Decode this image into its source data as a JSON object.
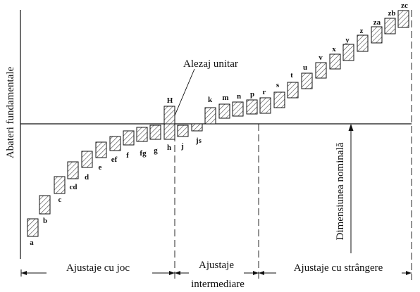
{
  "y_axis_label": "Abateri fundamentale",
  "zero_line_label": "Dimensiunea nominală",
  "hole_band": {
    "letter": "H",
    "callout": "Alezaj unitar"
  },
  "shaft_bands": [
    {
      "letter": "a"
    },
    {
      "letter": "b"
    },
    {
      "letter": "c"
    },
    {
      "letter": "cd"
    },
    {
      "letter": "d"
    },
    {
      "letter": "e"
    },
    {
      "letter": "ef"
    },
    {
      "letter": "f"
    },
    {
      "letter": "fg"
    },
    {
      "letter": "g"
    },
    {
      "letter": "h"
    },
    {
      "letter": "j"
    },
    {
      "letter": "js"
    },
    {
      "letter": "k"
    },
    {
      "letter": "m"
    },
    {
      "letter": "n"
    },
    {
      "letter": "p"
    },
    {
      "letter": "r"
    },
    {
      "letter": "s"
    },
    {
      "letter": "t"
    },
    {
      "letter": "u"
    },
    {
      "letter": "v"
    },
    {
      "letter": "x"
    },
    {
      "letter": "y"
    },
    {
      "letter": "z"
    },
    {
      "letter": "za"
    },
    {
      "letter": "zb"
    },
    {
      "letter": "zc"
    }
  ],
  "regions": [
    {
      "label": "Ajustaje cu joc"
    },
    {
      "label": "Ajustaje",
      "label2": "intermediare"
    },
    {
      "label": "Ajustaje cu strângere"
    }
  ]
}
